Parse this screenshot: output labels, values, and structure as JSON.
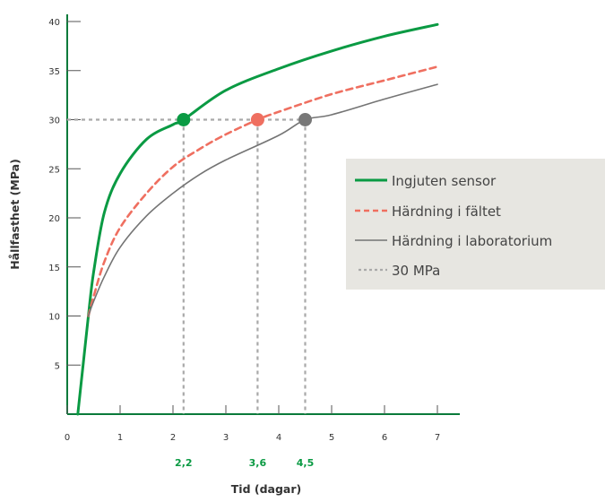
{
  "chart_data": {
    "type": "line",
    "xlabel": "Tid (dagar)",
    "ylabel": "Hållfasthet (MPa)",
    "xlim": [
      0,
      7.5
    ],
    "ylim": [
      0,
      40
    ],
    "x_ticks": [
      "0",
      "1",
      "2",
      "3",
      "4",
      "5",
      "6",
      "7"
    ],
    "y_ticks": [
      "5",
      "10",
      "15",
      "20",
      "25",
      "30",
      "35",
      "40"
    ],
    "grid": false,
    "legend_position": "right",
    "series": [
      {
        "name": "Ingjuten sensor",
        "style": "solid",
        "color": "#0a9a43",
        "x": [
          0.2,
          0.3,
          0.4,
          0.5,
          0.7,
          1.0,
          1.5,
          2.0,
          2.2,
          3.0,
          4.0,
          5.0,
          6.0,
          7.0
        ],
        "y": [
          0,
          5,
          10,
          14.5,
          20.5,
          24.5,
          28.0,
          29.5,
          30,
          33.0,
          35.2,
          37.0,
          38.5,
          39.7
        ]
      },
      {
        "name": "Härdning i fältet",
        "style": "dashed",
        "color": "#ef6f60",
        "x": [
          0.4,
          0.5,
          0.7,
          1.0,
          1.5,
          2.0,
          2.5,
          3.0,
          3.6,
          4.0,
          5.0,
          6.0,
          7.0
        ],
        "y": [
          10,
          12.0,
          15.5,
          19.0,
          22.5,
          25.2,
          27.0,
          28.5,
          30,
          30.8,
          32.6,
          34.0,
          35.4
        ]
      },
      {
        "name": "Härdning i laboratorium",
        "style": "solid",
        "color": "#747474",
        "x": [
          0.4,
          0.5,
          0.7,
          1.0,
          1.5,
          2.0,
          2.5,
          3.0,
          4.0,
          4.5,
          5.0,
          6.0,
          7.0
        ],
        "y": [
          10,
          11.5,
          14.0,
          17.0,
          20.2,
          22.5,
          24.4,
          25.9,
          28.4,
          30,
          30.5,
          32.1,
          33.6
        ]
      },
      {
        "name": "30 MPa",
        "style": "dotted",
        "color": "#a9a9a9",
        "x": [
          0,
          4.5
        ],
        "y": [
          30,
          30
        ]
      }
    ],
    "markers": [
      {
        "x": 2.2,
        "y": 30,
        "label": "2,2",
        "color": "#0a9a43",
        "label_color": "#0a9a43"
      },
      {
        "x": 3.6,
        "y": 30,
        "label": "3,6",
        "color": "#ef6f60",
        "label_color": "#0a9a43"
      },
      {
        "x": 4.5,
        "y": 30,
        "label": "4,5",
        "color": "#777777",
        "label_color": "#0a9a43"
      }
    ],
    "legend_background": "#e7e6e1",
    "axis_color": "#0a7a3a"
  }
}
